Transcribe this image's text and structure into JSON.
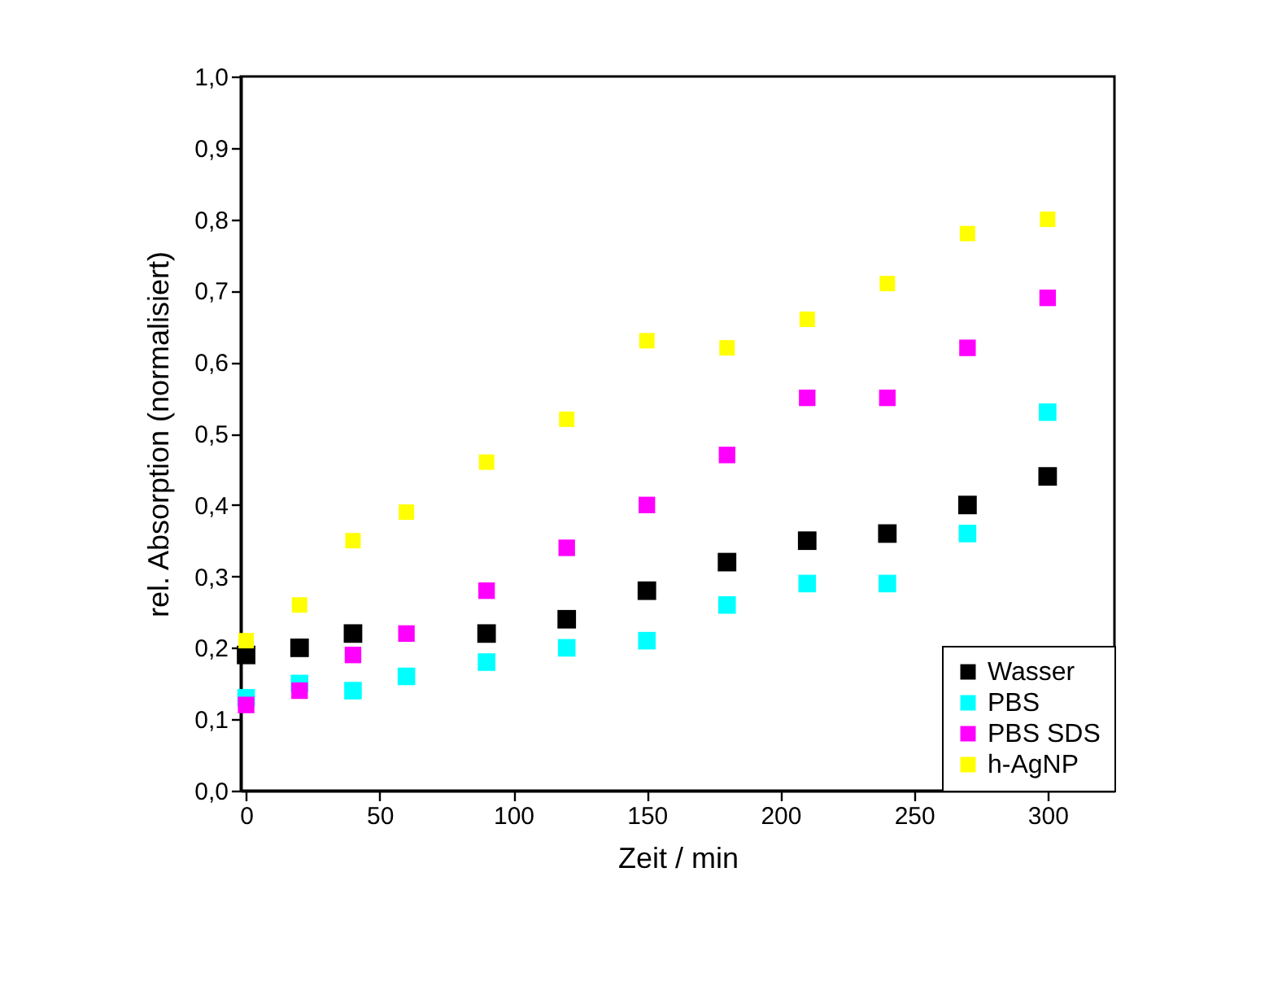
{
  "chart_data": {
    "type": "scatter",
    "xlabel": "Zeit / min",
    "ylabel": "rel. Absorption (normalisiert)",
    "xlim": [
      -2,
      325
    ],
    "ylim": [
      0,
      1
    ],
    "xticks": [
      0,
      50,
      100,
      150,
      200,
      250,
      300
    ],
    "yticks": [
      {
        "value": 0,
        "label": "0,0"
      },
      {
        "value": 0.1,
        "label": "0,1"
      },
      {
        "value": 0.2,
        "label": "0,2"
      },
      {
        "value": 0.3,
        "label": "0,3"
      },
      {
        "value": 0.4,
        "label": "0,4"
      },
      {
        "value": 0.5,
        "label": "0,5"
      },
      {
        "value": 0.6,
        "label": "0,6"
      },
      {
        "value": 0.7,
        "label": "0,7"
      },
      {
        "value": 0.8,
        "label": "0,8"
      },
      {
        "value": 0.9,
        "label": "0,9"
      },
      {
        "value": 1,
        "label": "1,0"
      }
    ],
    "marker": "square",
    "legend": "bottom right",
    "grid": false,
    "series": [
      {
        "name": "Wasser",
        "color": "#000000",
        "x": [
          0,
          20,
          40,
          90,
          120,
          150,
          180,
          210,
          240,
          270,
          300
        ],
        "values": [
          0.19,
          0.2,
          0.22,
          0.22,
          0.24,
          0.28,
          0.32,
          0.35,
          0.36,
          0.4,
          0.44
        ]
      },
      {
        "name": "PBS",
        "color": "#00ffff",
        "x": [
          0,
          20,
          40,
          60,
          90,
          120,
          150,
          180,
          210,
          240,
          270,
          300
        ],
        "values": [
          0.13,
          0.15,
          0.14,
          0.16,
          0.18,
          0.2,
          0.21,
          0.26,
          0.29,
          0.29,
          0.36,
          0.53
        ]
      },
      {
        "name": "PBS SDS",
        "color": "#ff00ff",
        "x": [
          0,
          20,
          40,
          60,
          90,
          120,
          150,
          180,
          210,
          240,
          270,
          300
        ],
        "values": [
          0.12,
          0.14,
          0.19,
          0.22,
          0.28,
          0.34,
          0.4,
          0.47,
          0.55,
          0.55,
          0.62,
          0.69
        ]
      },
      {
        "name": "h-AgNP",
        "color": "#ffff00",
        "x": [
          0,
          20,
          40,
          60,
          90,
          120,
          150,
          180,
          210,
          240,
          270,
          300
        ],
        "values": [
          0.21,
          0.26,
          0.35,
          0.39,
          0.46,
          0.52,
          0.63,
          0.62,
          0.66,
          0.71,
          0.78,
          0.8
        ]
      }
    ]
  }
}
